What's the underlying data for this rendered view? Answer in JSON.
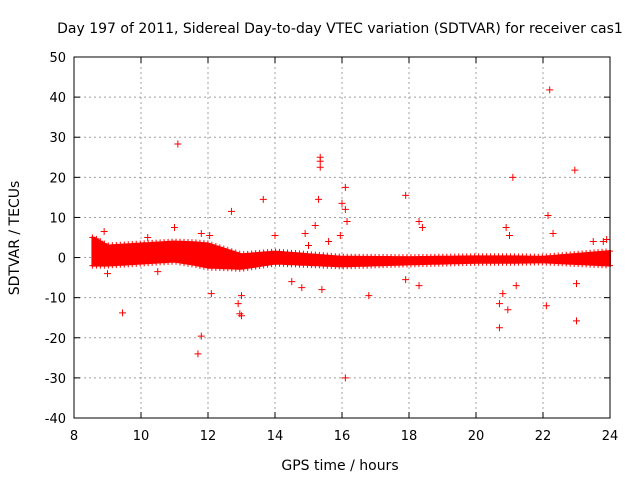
{
  "chart_data": {
    "type": "scatter",
    "title": "Day 197 of 2011, Sidereal Day-to-day VTEC variation (SDTVAR) for receiver cas1",
    "xlabel": "GPS time / hours",
    "ylabel": "SDTVAR / TECUs",
    "xlim": [
      8,
      24
    ],
    "ylim": [
      -40,
      50
    ],
    "xticks": [
      8,
      10,
      12,
      14,
      16,
      18,
      20,
      22,
      24
    ],
    "yticks": [
      -40,
      -30,
      -20,
      -10,
      0,
      10,
      20,
      30,
      40,
      50
    ],
    "grid": true,
    "marker": "+",
    "color": "#ff0000",
    "band": {
      "x_start": 8.55,
      "x_end": 24.0,
      "center": [
        [
          8.6,
          1.5
        ],
        [
          9.0,
          0.5
        ],
        [
          10.0,
          1.0
        ],
        [
          11.0,
          1.5
        ],
        [
          11.6,
          1.0
        ],
        [
          12.0,
          0.5
        ],
        [
          13.0,
          -1.0
        ],
        [
          14.0,
          0.0
        ],
        [
          15.0,
          -0.5
        ],
        [
          16.0,
          -1.0
        ],
        [
          18.0,
          -0.8
        ],
        [
          20.0,
          -0.5
        ],
        [
          21.0,
          -0.5
        ],
        [
          22.0,
          -0.5
        ],
        [
          24.0,
          -0.2
        ]
      ],
      "halfwidth": [
        [
          8.6,
          3.5
        ],
        [
          9.0,
          2.5
        ],
        [
          11.0,
          2.5
        ],
        [
          12.0,
          3.0
        ],
        [
          13.0,
          1.8
        ],
        [
          14.0,
          1.5
        ],
        [
          16.0,
          1.2
        ],
        [
          18.0,
          0.9
        ],
        [
          20.0,
          0.8
        ],
        [
          21.0,
          0.8
        ],
        [
          22.0,
          0.7
        ],
        [
          24.0,
          1.8
        ]
      ]
    },
    "outliers": [
      {
        "x": 8.9,
        "y": 6.5
      },
      {
        "x": 9.0,
        "y": -4.0
      },
      {
        "x": 9.45,
        "y": -13.8
      },
      {
        "x": 10.2,
        "y": 5.0
      },
      {
        "x": 10.5,
        "y": -3.5
      },
      {
        "x": 11.0,
        "y": 7.5
      },
      {
        "x": 11.1,
        "y": 28.3
      },
      {
        "x": 11.7,
        "y": -24.0
      },
      {
        "x": 11.8,
        "y": -19.6
      },
      {
        "x": 11.8,
        "y": 6.0
      },
      {
        "x": 12.1,
        "y": -9.0
      },
      {
        "x": 12.05,
        "y": 5.5
      },
      {
        "x": 12.7,
        "y": 11.5
      },
      {
        "x": 12.9,
        "y": -11.5
      },
      {
        "x": 13.0,
        "y": -9.5
      },
      {
        "x": 12.95,
        "y": -14.0
      },
      {
        "x": 13.0,
        "y": -14.5
      },
      {
        "x": 13.65,
        "y": 14.5
      },
      {
        "x": 14.0,
        "y": 5.5
      },
      {
        "x": 14.5,
        "y": -6.0
      },
      {
        "x": 14.8,
        "y": -7.5
      },
      {
        "x": 14.9,
        "y": 6.0
      },
      {
        "x": 15.0,
        "y": 3.0
      },
      {
        "x": 15.2,
        "y": 8.0
      },
      {
        "x": 15.3,
        "y": 14.5
      },
      {
        "x": 15.35,
        "y": 22.5
      },
      {
        "x": 15.35,
        "y": 24.0
      },
      {
        "x": 15.35,
        "y": 25.0
      },
      {
        "x": 15.4,
        "y": -8.0
      },
      {
        "x": 15.6,
        "y": 4.0
      },
      {
        "x": 15.95,
        "y": 5.5
      },
      {
        "x": 16.0,
        "y": 13.5
      },
      {
        "x": 16.1,
        "y": 17.5
      },
      {
        "x": 16.1,
        "y": 12.0
      },
      {
        "x": 16.15,
        "y": 9.0
      },
      {
        "x": 16.1,
        "y": -30.0
      },
      {
        "x": 16.8,
        "y": -9.5
      },
      {
        "x": 17.9,
        "y": 15.5
      },
      {
        "x": 17.9,
        "y": -5.5
      },
      {
        "x": 18.3,
        "y": 9.0
      },
      {
        "x": 18.4,
        "y": 7.5
      },
      {
        "x": 18.3,
        "y": -7.0
      },
      {
        "x": 20.7,
        "y": -11.5
      },
      {
        "x": 20.7,
        "y": -17.5
      },
      {
        "x": 20.8,
        "y": -9.0
      },
      {
        "x": 20.9,
        "y": 7.5
      },
      {
        "x": 20.95,
        "y": -13.0
      },
      {
        "x": 21.0,
        "y": 5.5
      },
      {
        "x": 21.1,
        "y": 20.0
      },
      {
        "x": 21.2,
        "y": -7.0
      },
      {
        "x": 22.1,
        "y": -12.0
      },
      {
        "x": 22.15,
        "y": 10.5
      },
      {
        "x": 22.2,
        "y": 41.8
      },
      {
        "x": 22.3,
        "y": 6.0
      },
      {
        "x": 22.95,
        "y": 21.8
      },
      {
        "x": 23.0,
        "y": -6.5
      },
      {
        "x": 23.0,
        "y": -15.8
      },
      {
        "x": 23.5,
        "y": 4.0
      },
      {
        "x": 23.8,
        "y": 4.0
      },
      {
        "x": 23.9,
        "y": 4.5
      }
    ]
  }
}
